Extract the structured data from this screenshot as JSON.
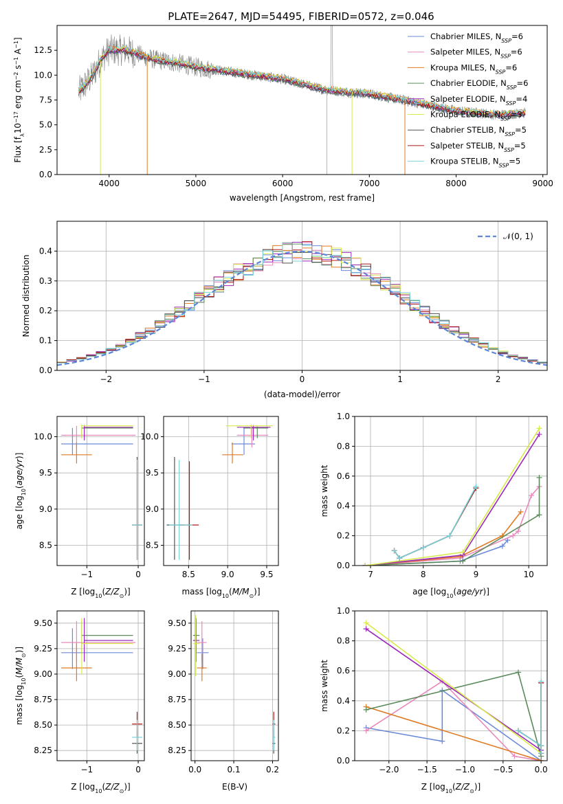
{
  "figure": {
    "title": "PLATE=2647, MJD=54495, FIBERID=0572, z=0.046"
  },
  "colors": {
    "Chabrier MILES": "#6a8ad8",
    "Salpeter MILES": "#e888bb",
    "Kroupa MILES": "#e07a22",
    "Chabrier ELODIE": "#5a8a5a",
    "Salpeter ELODIE": "#9a28b8",
    "Kroupa ELODIE": "#d8ea48",
    "Chabrier STELIB": "#505050",
    "Salpeter STELIB": "#b01818",
    "Kroupa STELIB": "#78d2d8",
    "data": "#808080",
    "gaussian": "#5b86d8"
  },
  "chart_data": [
    {
      "id": "spectrum",
      "type": "line",
      "title": "PLATE=2647, MJD=54495, FIBERID=0572, z=0.046",
      "xlabel": "wavelength [Angstrom, rest frame]",
      "ylabel_parts": [
        "Flux [f",
        "λ",
        "10",
        "−17",
        " erg cm",
        "−2",
        " s",
        "−1",
        " A",
        "−1",
        "]"
      ],
      "xlim": [
        3400,
        9050
      ],
      "ylim": [
        0,
        15
      ],
      "xticks": [
        4000,
        5000,
        6000,
        7000,
        8000,
        9000
      ],
      "yticks": [
        0.0,
        2.5,
        5.0,
        7.5,
        10.0,
        12.5
      ],
      "legend_position": "upper right",
      "continuum": [
        [
          3650,
          8.3
        ],
        [
          3800,
          9.8
        ],
        [
          3900,
          11.5
        ],
        [
          4000,
          12.5
        ],
        [
          4200,
          12.5
        ],
        [
          4500,
          11.6
        ],
        [
          4800,
          11.2
        ],
        [
          5000,
          10.8
        ],
        [
          5500,
          10.2
        ],
        [
          6000,
          9.6
        ],
        [
          6500,
          8.5
        ],
        [
          7000,
          8.1
        ],
        [
          7500,
          7.3
        ],
        [
          8000,
          6.4
        ],
        [
          8500,
          6.0
        ],
        [
          8800,
          6.2
        ]
      ],
      "series": [
        {
          "name": "Chabrier MILES",
          "nssp": "6"
        },
        {
          "name": "Salpeter MILES",
          "nssp": "6"
        },
        {
          "name": "Kroupa MILES",
          "nssp": "6"
        },
        {
          "name": "Chabrier ELODIE",
          "nssp": "6"
        },
        {
          "name": "Salpeter ELODIE",
          "nssp": "4"
        },
        {
          "name": "Kroupa ELODIE",
          "nssp": "3"
        },
        {
          "name": "Chabrier STELIB",
          "nssp": "5"
        },
        {
          "name": "Salpeter STELIB",
          "nssp": "5"
        },
        {
          "name": "Kroupa STELIB",
          "nssp": "5"
        }
      ]
    },
    {
      "id": "residuals",
      "type": "line",
      "xlabel": "(data-model)/error",
      "ylabel": "Normed distribution",
      "xlim": [
        -2.5,
        2.5
      ],
      "ylim": [
        0,
        0.5
      ],
      "xticks": [
        -2,
        -1,
        0,
        1,
        2
      ],
      "yticks": [
        0.0,
        0.1,
        0.2,
        0.3,
        0.4
      ],
      "grid": true,
      "legend": "𝒩(0, 1)",
      "legend_position": "upper right",
      "bin_width": 0.1
    },
    {
      "id": "age_vs_Z",
      "type": "scatter",
      "xlabel": "Z [log10(Z/Z⊙)]",
      "ylabel": "age  [log10(age/yr)]",
      "xlim": [
        -1.58,
        0.12
      ],
      "ylim": [
        8.22,
        10.28
      ],
      "xticks": [
        -1,
        0
      ],
      "yticks": [
        8.5,
        9.0,
        9.5,
        10.0
      ],
      "grid": true
    },
    {
      "id": "age_vs_mass",
      "type": "scatter",
      "xlabel": "mass [log10(M/M⊙)]",
      "xlim": [
        8.18,
        9.65
      ],
      "ylim": [
        8.22,
        10.28
      ],
      "xticks": [
        8.5,
        9.0,
        9.5
      ],
      "yticks": [
        8.5,
        9.0,
        9.5,
        10.0
      ],
      "grid": true
    },
    {
      "id": "massweight_vs_age",
      "type": "line",
      "xlabel": "age  [log10(age/yr)]",
      "ylabel": "mass weight",
      "xlim": [
        6.7,
        10.35
      ],
      "ylim": [
        0,
        1.0
      ],
      "xticks": [
        7,
        8,
        9,
        10
      ],
      "yticks": [
        0.0,
        0.2,
        0.4,
        0.6,
        0.8,
        1.0
      ],
      "grid": true,
      "series": [
        {
          "name": "Chabrier MILES",
          "x": [
            6.9,
            8.7,
            9.5,
            9.6
          ],
          "y": [
            0.0,
            0.03,
            0.13,
            0.17
          ]
        },
        {
          "name": "Salpeter MILES",
          "x": [
            6.9,
            8.7,
            9.7,
            9.8,
            10.05,
            10.2
          ],
          "y": [
            0.0,
            0.05,
            0.2,
            0.23,
            0.47,
            0.53
          ]
        },
        {
          "name": "Kroupa MILES",
          "x": [
            6.9,
            8.7,
            9.5,
            9.85
          ],
          "y": [
            0.0,
            0.06,
            0.2,
            0.36
          ]
        },
        {
          "name": "Chabrier ELODIE",
          "x": [
            6.9,
            8.75,
            10.2,
            10.2
          ],
          "y": [
            0.0,
            0.03,
            0.34,
            0.59
          ]
        },
        {
          "name": "Salpeter ELODIE",
          "x": [
            6.9,
            8.75,
            10.2
          ],
          "y": [
            0.0,
            0.07,
            0.88
          ]
        },
        {
          "name": "Kroupa ELODIE",
          "x": [
            6.9,
            8.75,
            10.2
          ],
          "y": [
            0.0,
            0.09,
            0.92
          ]
        },
        {
          "name": "Chabrier STELIB",
          "x": [
            7.45,
            7.55,
            8.0,
            8.5,
            9.0
          ],
          "y": [
            0.1,
            0.05,
            0.12,
            0.2,
            0.52
          ]
        },
        {
          "name": "Salpeter STELIB",
          "x": [
            7.45,
            7.55,
            8.0,
            8.5,
            9.0
          ],
          "y": [
            0.1,
            0.05,
            0.12,
            0.2,
            0.52
          ]
        },
        {
          "name": "Kroupa STELIB",
          "x": [
            7.45,
            7.55,
            8.0,
            8.5,
            9.0
          ],
          "y": [
            0.1,
            0.05,
            0.12,
            0.2,
            0.53
          ]
        }
      ]
    },
    {
      "id": "mass_vs_Z",
      "type": "scatter",
      "xlabel": "Z [log10(Z/Z⊙)]",
      "ylabel": "mass [log10(M/M⊙)]",
      "xlim": [
        -1.58,
        0.12
      ],
      "ylim": [
        8.15,
        9.62
      ],
      "xticks": [
        -1,
        0
      ],
      "yticks": [
        8.25,
        8.5,
        8.75,
        9.0,
        9.25,
        9.5
      ],
      "grid": true
    },
    {
      "id": "mass_vs_EBV",
      "type": "scatter",
      "xlabel": "E(B-V)",
      "xlim": [
        -0.01,
        0.215
      ],
      "ylim": [
        8.15,
        9.62
      ],
      "xticks": [
        0.0,
        0.1,
        0.2
      ],
      "yticks": [
        8.25,
        8.5,
        8.75,
        9.0,
        9.25,
        9.5
      ],
      "grid": true
    },
    {
      "id": "massweight_vs_Z",
      "type": "line",
      "xlabel": "Z [log10(Z/Z⊙)]",
      "ylabel": "mass weight",
      "xlim": [
        -2.45,
        0.08
      ],
      "ylim": [
        0,
        1.0
      ],
      "xticks": [
        -2.0,
        -1.5,
        -1.0,
        -0.5,
        0.0
      ],
      "yticks": [
        0.0,
        0.2,
        0.4,
        0.6,
        0.8,
        1.0
      ],
      "grid": true,
      "series": [
        {
          "name": "Chabrier MILES",
          "x": [
            -2.3,
            -1.3,
            -1.3,
            0.0
          ],
          "y": [
            0.22,
            0.13,
            0.47,
            0.0
          ]
        },
        {
          "name": "Salpeter MILES",
          "x": [
            -2.3,
            -1.3,
            -0.35,
            0.0
          ],
          "y": [
            0.2,
            0.53,
            0.03,
            0.0
          ]
        },
        {
          "name": "Kroupa MILES",
          "x": [
            -2.3,
            0.0
          ],
          "y": [
            0.36,
            0.0
          ]
        },
        {
          "name": "Chabrier ELODIE",
          "x": [
            -2.3,
            -0.3,
            0.0
          ],
          "y": [
            0.34,
            0.59,
            0.03
          ]
        },
        {
          "name": "Salpeter ELODIE",
          "x": [
            -2.3,
            0.0
          ],
          "y": [
            0.88,
            0.07
          ]
        },
        {
          "name": "Kroupa ELODIE",
          "x": [
            -2.3,
            0.0
          ],
          "y": [
            0.92,
            0.05
          ]
        },
        {
          "name": "Chabrier STELIB",
          "x": [
            -0.3,
            0.0,
            0.0,
            0.0
          ],
          "y": [
            0.2,
            0.1,
            0.52,
            0.05
          ]
        },
        {
          "name": "Salpeter STELIB",
          "x": [
            -0.3,
            0.0,
            0.0,
            0.0
          ],
          "y": [
            0.2,
            0.1,
            0.52,
            0.05
          ]
        },
        {
          "name": "Kroupa STELIB",
          "x": [
            -0.3,
            0.0,
            0.0,
            0.0
          ],
          "y": [
            0.2,
            0.1,
            0.53,
            0.05
          ]
        }
      ]
    }
  ],
  "fit_points": [
    {
      "name": "Chabrier MILES",
      "Z": [
        -1.28,
        -1.5,
        -0.1
      ],
      "age": [
        9.9,
        10.12,
        9.75
      ],
      "mass": [
        9.21,
        9.05,
        9.45
      ],
      "mass_err": [
        9.05,
        9.35
      ],
      "ebv": 0.02,
      "ebv_err": [
        0.005,
        0.035
      ]
    },
    {
      "name": "Salpeter MILES",
      "Z": [
        -1.2,
        -1.5,
        -0.05
      ],
      "age": [
        10.02,
        10.15,
        9.85
      ],
      "mass": [
        9.31,
        9.12,
        9.52
      ],
      "mass_err": [
        9.12,
        9.52
      ],
      "ebv": 0.018,
      "ebv_err": [
        0.005,
        0.03
      ]
    },
    {
      "name": "Kroupa MILES",
      "Z": [
        -1.2,
        -1.5,
        -0.9
      ],
      "age": [
        9.75,
        9.92,
        9.63
      ],
      "mass": [
        9.06,
        8.93,
        9.3
      ],
      "mass_err": [
        8.93,
        9.2
      ],
      "ebv": 0.018,
      "ebv_err": [
        0.005,
        0.03
      ]
    },
    {
      "name": "Chabrier ELODIE",
      "Z": [
        -1.1,
        -1.1,
        -0.1
      ],
      "age": [
        10.12,
        10.14,
        9.98
      ],
      "mass": [
        9.38,
        9.2,
        9.52
      ],
      "mass_err": [
        9.2,
        9.52
      ],
      "ebv": 0.003,
      "ebv_err": [
        -0.005,
        0.012
      ]
    },
    {
      "name": "Salpeter ELODIE",
      "Z": [
        -1.05,
        -1.05,
        -0.1
      ],
      "age": [
        10.13,
        10.16,
        9.95
      ],
      "mass": [
        9.33,
        9.12,
        9.55
      ],
      "mass_err": [
        9.12,
        9.55
      ],
      "ebv": 0.003,
      "ebv_err": [
        -0.005,
        0.012
      ]
    },
    {
      "name": "Kroupa ELODIE",
      "Z": [
        -1.1,
        -1.1,
        -0.1
      ],
      "age": [
        10.15,
        10.17,
        9.98
      ],
      "mass": [
        9.3,
        9.0,
        9.55
      ],
      "mass_err": [
        8.98,
        9.58
      ],
      "ebv": 0.002,
      "ebv_err": [
        -0.005,
        0.012
      ]
    },
    {
      "name": "Chabrier STELIB",
      "Z": [
        -0.02,
        -0.12,
        0.08
      ],
      "age": [
        8.78,
        8.3,
        9.72
      ],
      "mass": [
        8.32,
        8.22,
        8.45
      ],
      "mass_err": [
        8.22,
        8.45
      ],
      "ebv": 0.203,
      "ebv_err": [
        0.2,
        0.207
      ]
    },
    {
      "name": "Salpeter STELIB",
      "Z": [
        -0.02,
        -0.12,
        0.08
      ],
      "age": [
        8.78,
        8.3,
        9.66
      ],
      "mass": [
        8.51,
        8.38,
        8.63
      ],
      "mass_err": [
        8.38,
        8.63
      ],
      "ebv": 0.203,
      "ebv_err": [
        0.2,
        0.207
      ]
    },
    {
      "name": "Kroupa STELIB",
      "Z": [
        -0.02,
        -0.12,
        0.08
      ],
      "age": [
        8.78,
        8.3,
        9.68
      ],
      "mass": [
        8.38,
        8.25,
        8.55
      ],
      "mass_err": [
        8.25,
        8.55
      ],
      "ebv": 0.203,
      "ebv_err": [
        0.2,
        0.207
      ]
    }
  ]
}
